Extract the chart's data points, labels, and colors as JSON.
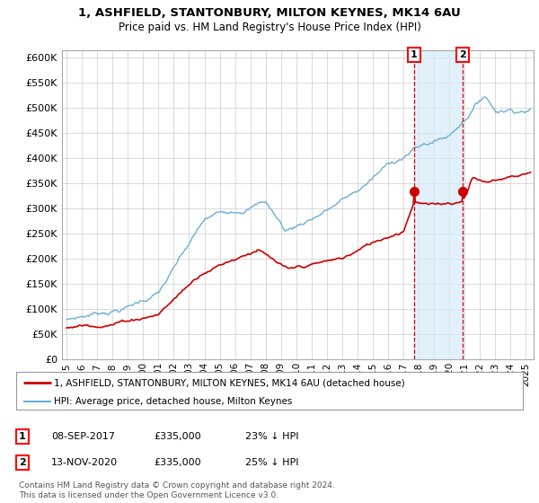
{
  "title_line1": "1, ASHFIELD, STANTONBURY, MILTON KEYNES, MK14 6AU",
  "title_line2": "Price paid vs. HM Land Registry's House Price Index (HPI)",
  "ylabel_ticks": [
    "£0",
    "£50K",
    "£100K",
    "£150K",
    "£200K",
    "£250K",
    "£300K",
    "£350K",
    "£400K",
    "£450K",
    "£500K",
    "£550K",
    "£600K"
  ],
  "ytick_vals": [
    0,
    50000,
    100000,
    150000,
    200000,
    250000,
    300000,
    350000,
    400000,
    450000,
    500000,
    550000,
    600000
  ],
  "ylim": [
    0,
    615000
  ],
  "xlim_start": 1994.7,
  "xlim_end": 2025.5,
  "legend_line1": "1, ASHFIELD, STANTONBURY, MILTON KEYNES, MK14 6AU (detached house)",
  "legend_line2": "HPI: Average price, detached house, Milton Keynes",
  "marker1_x": 2017.69,
  "marker1_y": 335000,
  "marker1_label": "1",
  "marker2_x": 2020.87,
  "marker2_y": 335000,
  "marker2_label": "2",
  "footnote": "Contains HM Land Registry data © Crown copyright and database right 2024.\nThis data is licensed under the Open Government Licence v3.0.",
  "hpi_color": "#6baed6",
  "price_color": "#cc0000",
  "shade_color": "#d6eaf8",
  "background_color": "#ffffff",
  "grid_color": "#cccccc"
}
